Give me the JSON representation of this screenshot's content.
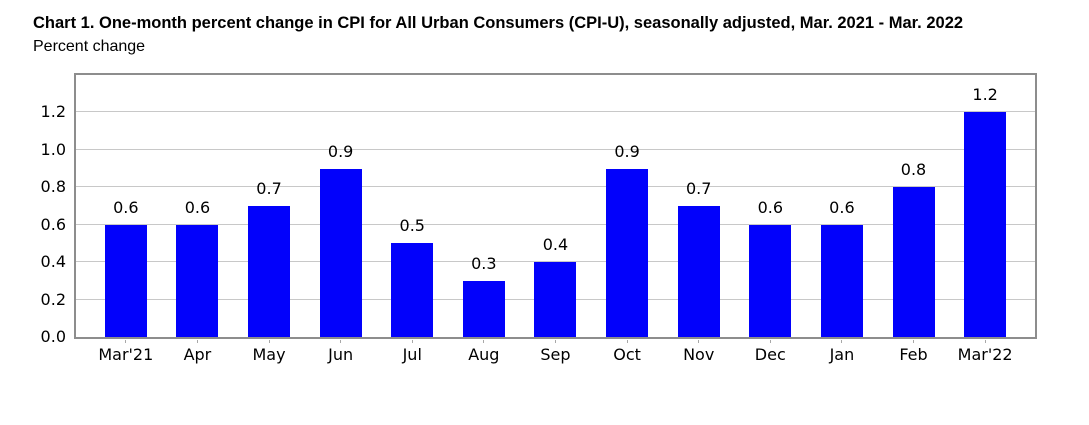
{
  "title": "Chart 1. One-month percent change in CPI for All Urban Consumers (CPI-U), seasonally adjusted, Mar. 2021 - Mar. 2022",
  "subtitle": "Percent change",
  "colors": {
    "bar": "#0201fb",
    "gridline": "#c8c8c8",
    "plot_border": "#8d8d8d",
    "text": "#000000",
    "background": "#ffffff"
  },
  "chart_data": {
    "type": "bar",
    "title": "Chart 1. One-month percent change in CPI for All Urban Consumers (CPI-U), seasonally adjusted, Mar. 2021 - Mar. 2022",
    "xlabel": "",
    "ylabel": "Percent change",
    "categories": [
      "Mar'21",
      "Apr",
      "May",
      "Jun",
      "Jul",
      "Aug",
      "Sep",
      "Oct",
      "Nov",
      "Dec",
      "Jan",
      "Feb",
      "Mar'22"
    ],
    "values": [
      0.6,
      0.6,
      0.7,
      0.9,
      0.5,
      0.3,
      0.4,
      0.9,
      0.7,
      0.6,
      0.6,
      0.8,
      1.2
    ],
    "data_labels": [
      "0.6",
      "0.6",
      "0.7",
      "0.9",
      "0.5",
      "0.3",
      "0.4",
      "0.9",
      "0.7",
      "0.6",
      "0.6",
      "0.8",
      "1.2"
    ],
    "ylim": [
      0,
      1.4
    ],
    "yticks": [
      0.0,
      0.2,
      0.4,
      0.6,
      0.8,
      1.0,
      1.2
    ],
    "ytick_labels": [
      "0.0",
      "0.2",
      "0.4",
      "0.6",
      "0.8",
      "1.0",
      "1.2"
    ],
    "grid": true,
    "legend": "none",
    "bar_color": "#0201fb"
  }
}
